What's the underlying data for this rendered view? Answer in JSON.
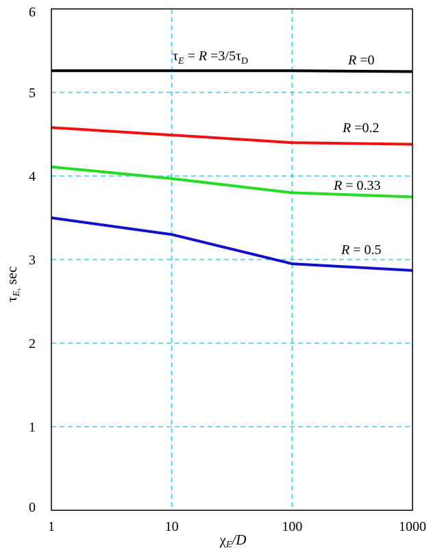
{
  "chart_data": {
    "type": "line",
    "x_scale": "log",
    "xlim": [
      1,
      1000
    ],
    "ylim": [
      0,
      6
    ],
    "grid": true,
    "grid_color": "#33ccee",
    "x_ticks": [
      "1",
      "10",
      "100",
      "1000"
    ],
    "y_ticks": [
      "0",
      "1",
      "2",
      "3",
      "4",
      "5",
      "6"
    ],
    "xlabel": {
      "main": "χ",
      "sub": "E",
      "rest": "/D"
    },
    "ylabel": {
      "main": "τ",
      "sub": "E,",
      "rest": " sec"
    },
    "top_annotation": {
      "tau": "τ",
      "sub_e": "E",
      "eq1": " = ",
      "r": "R",
      "eq2": " =3/5τ",
      "sub_d": "D"
    },
    "series": [
      {
        "name": "R =0",
        "label_r": "R",
        "label_rest": " =0",
        "color": "#000000",
        "x": [
          1,
          10,
          100,
          1000
        ],
        "y": [
          5.26,
          5.26,
          5.26,
          5.25
        ]
      },
      {
        "name": "R =0.2",
        "label_r": "R",
        "label_rest": " =0.2",
        "color": "#ee1111",
        "x": [
          1,
          10,
          100,
          1000
        ],
        "y": [
          4.58,
          4.49,
          4.4,
          4.38
        ]
      },
      {
        "name": "R = 0.33",
        "label_r": "R",
        "label_rest": " = 0.33",
        "color": "#22dd22",
        "x": [
          1,
          10,
          100,
          1000
        ],
        "y": [
          4.11,
          3.97,
          3.8,
          3.75
        ]
      },
      {
        "name": "R = 0.5",
        "label_r": "R",
        "label_rest": " = 0.5",
        "color": "#1111cc",
        "x": [
          1,
          10,
          100,
          1000
        ],
        "y": [
          3.5,
          3.3,
          2.95,
          2.87
        ]
      }
    ]
  }
}
